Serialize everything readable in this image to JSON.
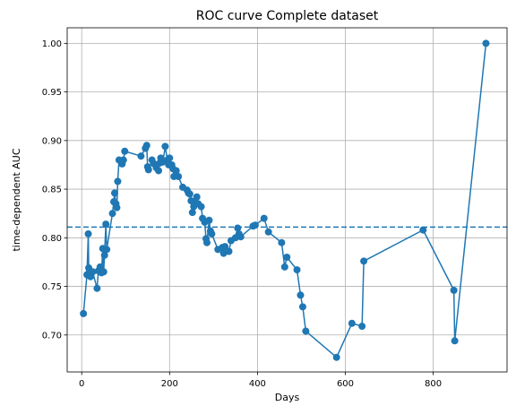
{
  "chart_data": {
    "type": "line",
    "title": "ROC curve Complete dataset",
    "xlabel": "Days",
    "ylabel": "time-dependent AUC",
    "xlim": [
      -33,
      968
    ],
    "ylim": [
      0.662,
      1.016
    ],
    "xticks": [
      0,
      200,
      400,
      600,
      800
    ],
    "xtick_labels": [
      "0",
      "200",
      "400",
      "600",
      "800"
    ],
    "yticks": [
      0.7,
      0.75,
      0.8,
      0.85,
      0.9,
      0.95,
      1.0
    ],
    "ytick_labels": [
      "0.70",
      "0.75",
      "0.80",
      "0.85",
      "0.90",
      "0.95",
      "1.00"
    ],
    "grid": true,
    "colors": {
      "series": "#1f77b4",
      "grid": "#b0b0b0"
    },
    "reference_line": {
      "y": 0.811,
      "style": "dashed"
    },
    "series": [
      {
        "marker": "circle",
        "x": [
          4,
          12,
          15,
          16,
          18,
          20,
          25,
          35,
          38,
          42,
          45,
          48,
          50,
          52,
          55,
          57,
          70,
          73,
          75,
          78,
          80,
          82,
          85,
          92,
          95,
          98,
          135,
          145,
          148,
          150,
          152,
          160,
          165,
          170,
          175,
          178,
          180,
          185,
          190,
          195,
          198,
          200,
          205,
          208,
          210,
          215,
          220,
          230,
          240,
          243,
          246,
          249,
          252,
          255,
          258,
          262,
          265,
          272,
          275,
          280,
          283,
          285,
          290,
          293,
          296,
          310,
          320,
          323,
          326,
          335,
          340,
          350,
          355,
          358,
          362,
          390,
          395,
          415,
          425,
          455,
          462,
          467,
          490,
          498,
          503,
          510,
          580,
          615,
          638,
          642,
          777,
          847,
          849,
          920
        ],
        "y": [
          0.722,
          0.762,
          0.804,
          0.769,
          0.766,
          0.76,
          0.765,
          0.748,
          0.766,
          0.77,
          0.764,
          0.789,
          0.765,
          0.782,
          0.814,
          0.788,
          0.825,
          0.837,
          0.846,
          0.835,
          0.831,
          0.858,
          0.88,
          0.876,
          0.88,
          0.889,
          0.884,
          0.892,
          0.895,
          0.873,
          0.87,
          0.88,
          0.876,
          0.872,
          0.869,
          0.877,
          0.882,
          0.878,
          0.894,
          0.88,
          0.875,
          0.882,
          0.875,
          0.871,
          0.863,
          0.869,
          0.863,
          0.852,
          0.849,
          0.846,
          0.845,
          0.838,
          0.826,
          0.832,
          0.836,
          0.842,
          0.835,
          0.832,
          0.82,
          0.816,
          0.799,
          0.795,
          0.818,
          0.807,
          0.804,
          0.788,
          0.79,
          0.784,
          0.791,
          0.786,
          0.797,
          0.8,
          0.81,
          0.804,
          0.801,
          0.812,
          0.813,
          0.82,
          0.806,
          0.795,
          0.77,
          0.78,
          0.767,
          0.741,
          0.729,
          0.704,
          0.677,
          0.712,
          0.709,
          0.776,
          0.808,
          0.746,
          0.694,
          1.0
        ]
      }
    ]
  }
}
